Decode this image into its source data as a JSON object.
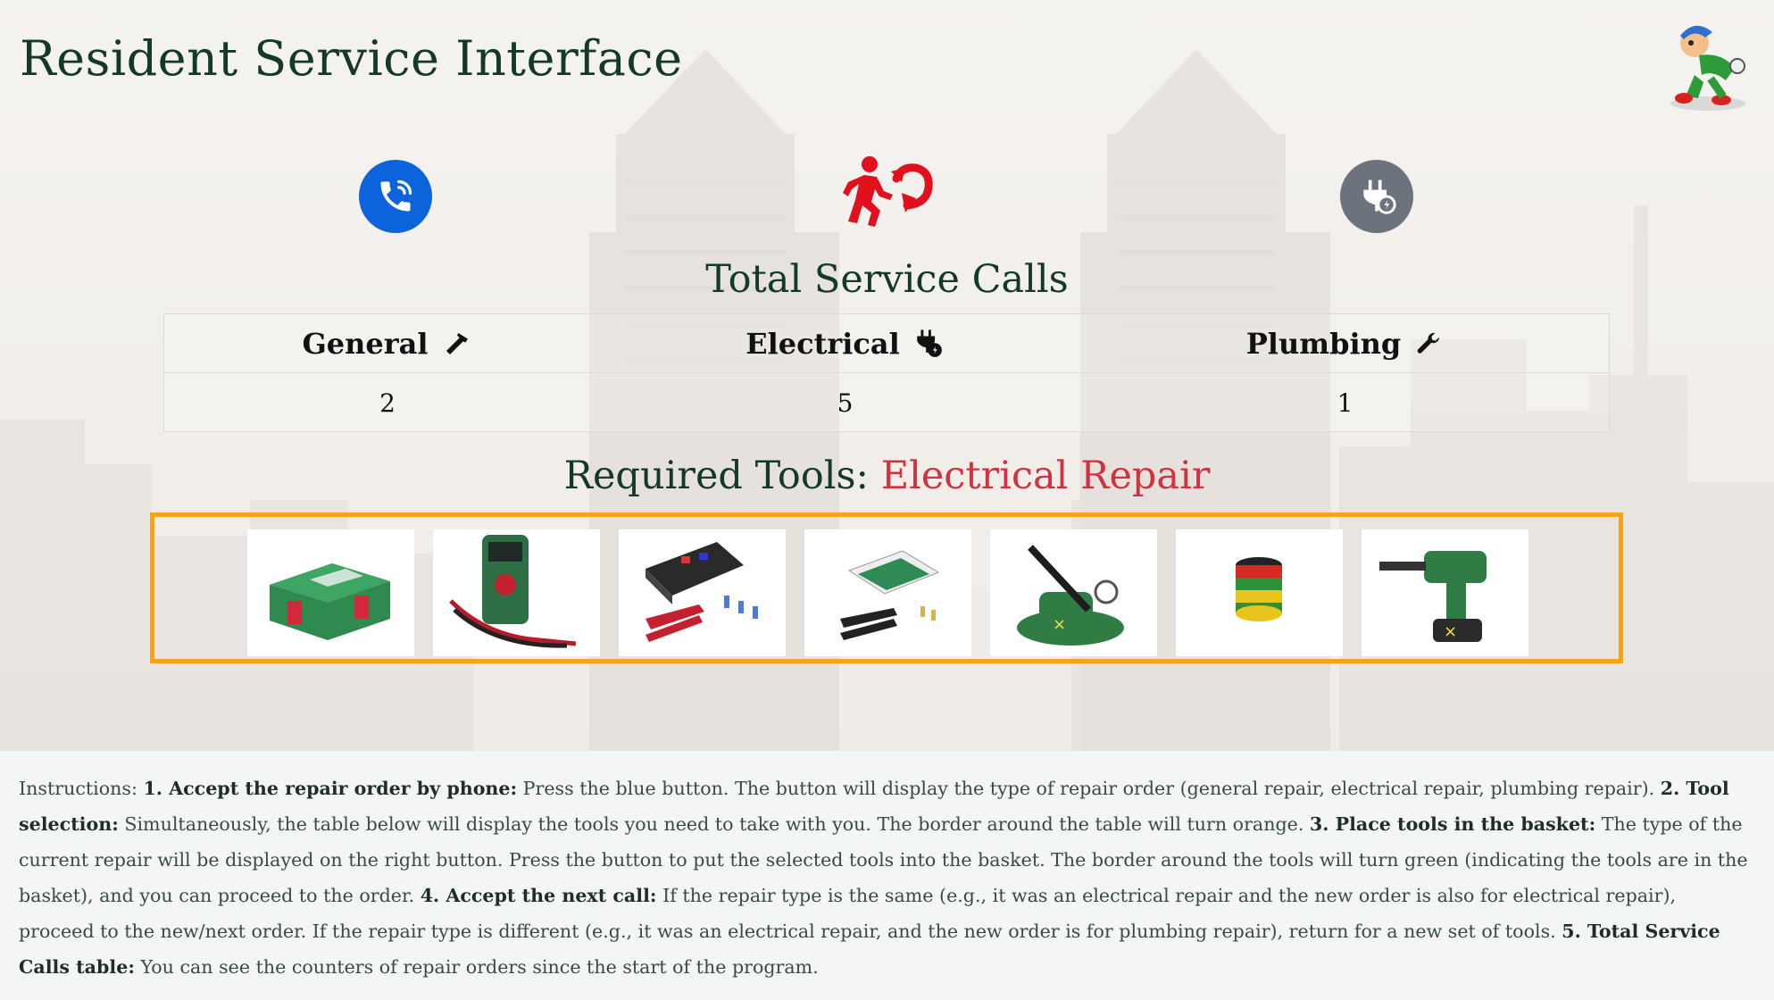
{
  "header": {
    "title": "Resident Service Interface"
  },
  "icons": {
    "phone_button": "phone-icon",
    "runner": "running-person-icon",
    "plug_button": "plug-icon",
    "mascot": "mascot-image"
  },
  "colors": {
    "phone_button": "#0c63dc",
    "runner": "#e0101d",
    "plug_button": "#6c737c",
    "tools_border": "#f6a51a",
    "tools_accent": "#d0323f"
  },
  "calls": {
    "title": "Total Service Calls",
    "columns": [
      {
        "label": "General",
        "icon": "hammer-icon",
        "count": "2"
      },
      {
        "label": "Electrical",
        "icon": "plug-bolt-icon",
        "count": "5"
      },
      {
        "label": "Plumbing",
        "icon": "wrench-icon",
        "count": "1"
      }
    ]
  },
  "tools": {
    "title_prefix": "Required Tools:",
    "title_type": "Electrical Repair",
    "items": [
      "tool-case-image",
      "multimeter-image",
      "crimping-kit-image",
      "crimp-terminal-kit-image",
      "soldering-station-image",
      "insulating-tape-image",
      "rotary-hammer-image"
    ]
  },
  "instructions": {
    "intro": "Instructions:",
    "s1_head": "1. Accept the repair order by phone:",
    "s1_text": " Press the blue button. The button will display the type of repair order (general repair, electrical repair, plumbing repair). ",
    "s2_head": "2. Tool selection:",
    "s2_text": " Simultaneously, the table below will display the tools you need to take with you. The border around the table will turn orange. ",
    "s3_head": "3. Place tools in the basket:",
    "s3_text": " The type of the current repair will be displayed on the right button. Press the button to put the selected tools into the basket. The border around the tools will turn green (indicating the tools are in the basket), and you can proceed to the order. ",
    "s4_head": "4. Accept the next call:",
    "s4_text": " If the repair type is the same (e.g., it was an electrical repair and the new order is also for electrical repair), proceed to the new/next order. If the repair type is different (e.g., it was an electrical repair, and the new order is for plumbing repair), return for a new set of tools. ",
    "s5_head": "5. Total Service Calls table:",
    "s5_text": " You can see the counters of repair orders since the start of the program."
  }
}
